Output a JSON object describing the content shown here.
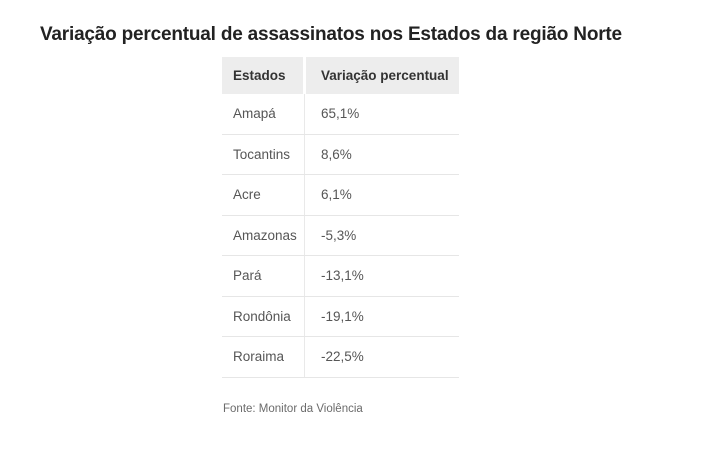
{
  "title": "Variação percentual de assassinatos nos Estados da região Norte",
  "table": {
    "headers": [
      "Estados",
      "Variação percentual"
    ],
    "rows": [
      {
        "state": "Amapá",
        "variation": "65,1%"
      },
      {
        "state": "Tocantins",
        "variation": "8,6%"
      },
      {
        "state": "Acre",
        "variation": "6,1%"
      },
      {
        "state": "Amazonas",
        "variation": "-5,3%"
      },
      {
        "state": "Pará",
        "variation": "-13,1%"
      },
      {
        "state": "Rondônia",
        "variation": "-19,1%"
      },
      {
        "state": "Roraima",
        "variation": "-22,5%"
      }
    ]
  },
  "source": "Fonte: Monitor da Violência",
  "colors": {
    "header_background": "#ededed",
    "header_text": "#333333",
    "body_text": "#565656",
    "divider": "#e6e6e6",
    "title_text": "#222222",
    "source_text": "#6b6b6b",
    "page_background": "#ffffff"
  },
  "chart_data": {
    "type": "table",
    "title": "Variação percentual de assassinatos nos Estados da região Norte",
    "columns": [
      "Estados",
      "Variação percentual"
    ],
    "rows": [
      [
        "Amapá",
        "65,1%"
      ],
      [
        "Tocantins",
        "8,6%"
      ],
      [
        "Acre",
        "6,1%"
      ],
      [
        "Amazonas",
        "-5,3%"
      ],
      [
        "Pará",
        "-13,1%"
      ],
      [
        "Rondônia",
        "-19,1%"
      ],
      [
        "Roraima",
        "-22,5%"
      ]
    ],
    "values_numeric_percent": [
      65.1,
      8.6,
      6.1,
      -5.3,
      -13.1,
      -19.1,
      -22.5
    ],
    "source": "Fonte: Monitor da Violência"
  }
}
